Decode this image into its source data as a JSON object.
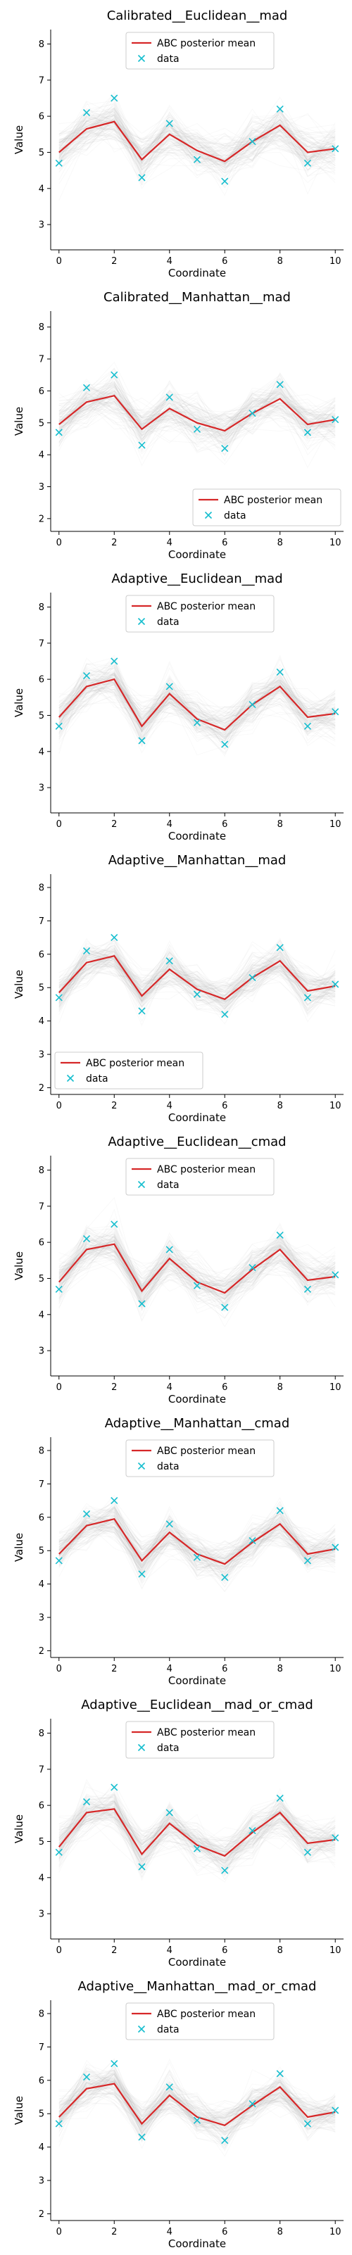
{
  "chart_data": [
    {
      "type": "line",
      "title": "Calibrated__Euclidean__mad",
      "xlabel": "Coordinate",
      "ylabel": "Value",
      "xlim": [
        -0.3,
        10.3
      ],
      "ylim": [
        2.3,
        8.4
      ],
      "xticks": [
        "0",
        "2",
        "4",
        "6",
        "8",
        "10"
      ],
      "yticks": [
        "3",
        "4",
        "5",
        "6",
        "7",
        "8"
      ],
      "legend_position": "top-center",
      "x": [
        0,
        1,
        2,
        3,
        4,
        5,
        6,
        7,
        8,
        9,
        10
      ],
      "series": [
        {
          "name": "ABC posterior mean",
          "kind": "line",
          "color": "#d62728",
          "values": [
            5.0,
            5.65,
            5.85,
            4.8,
            5.5,
            5.05,
            4.75,
            5.3,
            5.75,
            5.0,
            5.1
          ]
        },
        {
          "name": "data",
          "kind": "marker",
          "color": "#17becf",
          "values": [
            4.7,
            6.1,
            6.5,
            4.3,
            5.8,
            4.8,
            4.2,
            5.3,
            6.2,
            4.7,
            5.1
          ]
        }
      ],
      "posterior_samples": {
        "count": 120,
        "spread": 0.55,
        "color": "#b0b0b0"
      }
    },
    {
      "type": "line",
      "title": "Calibrated__Manhattan__mad",
      "xlabel": "Coordinate",
      "ylabel": "Value",
      "xlim": [
        -0.3,
        10.3
      ],
      "ylim": [
        1.6,
        8.5
      ],
      "xticks": [
        "0",
        "2",
        "4",
        "6",
        "8",
        "10"
      ],
      "yticks": [
        "2",
        "3",
        "4",
        "5",
        "6",
        "7",
        "8"
      ],
      "legend_position": "bottom-right",
      "x": [
        0,
        1,
        2,
        3,
        4,
        5,
        6,
        7,
        8,
        9,
        10
      ],
      "series": [
        {
          "name": "ABC posterior mean",
          "kind": "line",
          "color": "#d62728",
          "values": [
            4.95,
            5.65,
            5.85,
            4.8,
            5.45,
            5.0,
            4.75,
            5.3,
            5.75,
            4.95,
            5.1
          ]
        },
        {
          "name": "data",
          "kind": "marker",
          "color": "#17becf",
          "values": [
            4.7,
            6.1,
            6.5,
            4.3,
            5.8,
            4.8,
            4.2,
            5.3,
            6.2,
            4.7,
            5.1
          ]
        }
      ],
      "posterior_samples": {
        "count": 120,
        "spread": 0.6,
        "color": "#b0b0b0"
      }
    },
    {
      "type": "line",
      "title": "Adaptive__Euclidean__mad",
      "xlabel": "Coordinate",
      "ylabel": "Value",
      "xlim": [
        -0.3,
        10.3
      ],
      "ylim": [
        2.3,
        8.4
      ],
      "xticks": [
        "0",
        "2",
        "4",
        "6",
        "8",
        "10"
      ],
      "yticks": [
        "3",
        "4",
        "5",
        "6",
        "7",
        "8"
      ],
      "legend_position": "top-center",
      "x": [
        0,
        1,
        2,
        3,
        4,
        5,
        6,
        7,
        8,
        9,
        10
      ],
      "series": [
        {
          "name": "ABC posterior mean",
          "kind": "line",
          "color": "#d62728",
          "values": [
            4.95,
            5.8,
            6.0,
            4.7,
            5.6,
            4.9,
            4.6,
            5.3,
            5.8,
            4.95,
            5.05
          ]
        },
        {
          "name": "data",
          "kind": "marker",
          "color": "#17becf",
          "values": [
            4.7,
            6.1,
            6.5,
            4.3,
            5.8,
            4.8,
            4.2,
            5.3,
            6.2,
            4.7,
            5.1
          ]
        }
      ],
      "posterior_samples": {
        "count": 120,
        "spread": 0.5,
        "color": "#b0b0b0"
      }
    },
    {
      "type": "line",
      "title": "Adaptive__Manhattan__mad",
      "xlabel": "Coordinate",
      "ylabel": "Value",
      "xlim": [
        -0.3,
        10.3
      ],
      "ylim": [
        1.8,
        8.4
      ],
      "xticks": [
        "0",
        "2",
        "4",
        "6",
        "8",
        "10"
      ],
      "yticks": [
        "2",
        "3",
        "4",
        "5",
        "6",
        "7",
        "8"
      ],
      "legend_position": "bottom-left",
      "x": [
        0,
        1,
        2,
        3,
        4,
        5,
        6,
        7,
        8,
        9,
        10
      ],
      "series": [
        {
          "name": "ABC posterior mean",
          "kind": "line",
          "color": "#d62728",
          "values": [
            4.85,
            5.75,
            5.95,
            4.75,
            5.55,
            4.95,
            4.65,
            5.3,
            5.8,
            4.9,
            5.05
          ]
        },
        {
          "name": "data",
          "kind": "marker",
          "color": "#17becf",
          "values": [
            4.7,
            6.1,
            6.5,
            4.3,
            5.8,
            4.8,
            4.2,
            5.3,
            6.2,
            4.7,
            5.1
          ]
        }
      ],
      "posterior_samples": {
        "count": 120,
        "spread": 0.5,
        "color": "#b0b0b0"
      }
    },
    {
      "type": "line",
      "title": "Adaptive__Euclidean__cmad",
      "xlabel": "Coordinate",
      "ylabel": "Value",
      "xlim": [
        -0.3,
        10.3
      ],
      "ylim": [
        2.3,
        8.4
      ],
      "xticks": [
        "0",
        "2",
        "4",
        "6",
        "8",
        "10"
      ],
      "yticks": [
        "3",
        "4",
        "5",
        "6",
        "7",
        "8"
      ],
      "legend_position": "top-center",
      "x": [
        0,
        1,
        2,
        3,
        4,
        5,
        6,
        7,
        8,
        9,
        10
      ],
      "series": [
        {
          "name": "ABC posterior mean",
          "kind": "line",
          "color": "#d62728",
          "values": [
            4.9,
            5.8,
            5.95,
            4.65,
            5.55,
            4.9,
            4.6,
            5.25,
            5.8,
            4.95,
            5.05
          ]
        },
        {
          "name": "data",
          "kind": "marker",
          "color": "#17becf",
          "values": [
            4.7,
            6.1,
            6.5,
            4.3,
            5.8,
            4.8,
            4.2,
            5.3,
            6.2,
            4.7,
            5.1
          ]
        }
      ],
      "posterior_samples": {
        "count": 120,
        "spread": 0.5,
        "color": "#b0b0b0"
      }
    },
    {
      "type": "line",
      "title": "Adaptive__Manhattan__cmad",
      "xlabel": "Coordinate",
      "ylabel": "Value",
      "xlim": [
        -0.3,
        10.3
      ],
      "ylim": [
        1.8,
        8.4
      ],
      "xticks": [
        "0",
        "2",
        "4",
        "6",
        "8",
        "10"
      ],
      "yticks": [
        "2",
        "3",
        "4",
        "5",
        "6",
        "7",
        "8"
      ],
      "legend_position": "top-center",
      "x": [
        0,
        1,
        2,
        3,
        4,
        5,
        6,
        7,
        8,
        9,
        10
      ],
      "series": [
        {
          "name": "ABC posterior mean",
          "kind": "line",
          "color": "#d62728",
          "values": [
            4.9,
            5.75,
            5.95,
            4.7,
            5.55,
            4.9,
            4.6,
            5.25,
            5.8,
            4.9,
            5.05
          ]
        },
        {
          "name": "data",
          "kind": "marker",
          "color": "#17becf",
          "values": [
            4.7,
            6.1,
            6.5,
            4.3,
            5.8,
            4.8,
            4.2,
            5.3,
            6.2,
            4.7,
            5.1
          ]
        }
      ],
      "posterior_samples": {
        "count": 120,
        "spread": 0.5,
        "color": "#b0b0b0"
      }
    },
    {
      "type": "line",
      "title": "Adaptive__Euclidean__mad_or_cmad",
      "xlabel": "Coordinate",
      "ylabel": "Value",
      "xlim": [
        -0.3,
        10.3
      ],
      "ylim": [
        2.3,
        8.4
      ],
      "xticks": [
        "0",
        "2",
        "4",
        "6",
        "8",
        "10"
      ],
      "yticks": [
        "3",
        "4",
        "5",
        "6",
        "7",
        "8"
      ],
      "legend_position": "top-center",
      "x": [
        0,
        1,
        2,
        3,
        4,
        5,
        6,
        7,
        8,
        9,
        10
      ],
      "series": [
        {
          "name": "ABC posterior mean",
          "kind": "line",
          "color": "#d62728",
          "values": [
            4.85,
            5.8,
            5.9,
            4.65,
            5.5,
            4.9,
            4.6,
            5.25,
            5.8,
            4.95,
            5.05
          ]
        },
        {
          "name": "data",
          "kind": "marker",
          "color": "#17becf",
          "values": [
            4.7,
            6.1,
            6.5,
            4.3,
            5.8,
            4.8,
            4.2,
            5.3,
            6.2,
            4.7,
            5.1
          ]
        }
      ],
      "posterior_samples": {
        "count": 120,
        "spread": 0.5,
        "color": "#b0b0b0"
      }
    },
    {
      "type": "line",
      "title": "Adaptive__Manhattan__mad_or_cmad",
      "xlabel": "Coordinate",
      "ylabel": "Value",
      "xlim": [
        -0.3,
        10.3
      ],
      "ylim": [
        1.8,
        8.4
      ],
      "xticks": [
        "0",
        "2",
        "4",
        "6",
        "8",
        "10"
      ],
      "yticks": [
        "2",
        "3",
        "4",
        "5",
        "6",
        "7",
        "8"
      ],
      "legend_position": "top-center",
      "x": [
        0,
        1,
        2,
        3,
        4,
        5,
        6,
        7,
        8,
        9,
        10
      ],
      "series": [
        {
          "name": "ABC posterior mean",
          "kind": "line",
          "color": "#d62728",
          "values": [
            4.9,
            5.75,
            5.9,
            4.7,
            5.55,
            4.9,
            4.65,
            5.25,
            5.8,
            4.9,
            5.05
          ]
        },
        {
          "name": "data",
          "kind": "marker",
          "color": "#17becf",
          "values": [
            4.7,
            6.1,
            6.5,
            4.3,
            5.8,
            4.8,
            4.2,
            5.3,
            6.2,
            4.7,
            5.1
          ]
        }
      ],
      "posterior_samples": {
        "count": 120,
        "spread": 0.5,
        "color": "#b0b0b0"
      }
    }
  ]
}
